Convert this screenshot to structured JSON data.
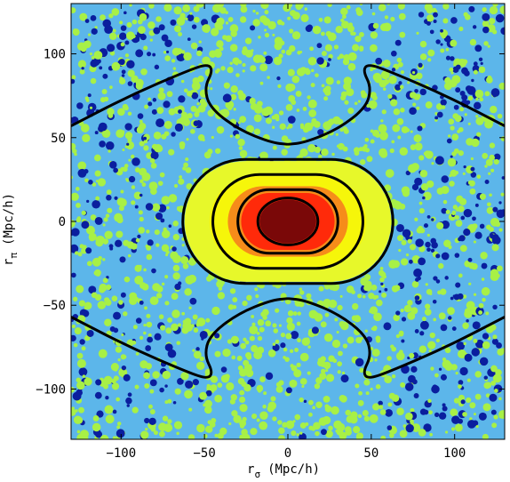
{
  "chart_data": {
    "type": "heatmap",
    "title": "",
    "xlabel": {
      "main": "r",
      "sub": "σ",
      "unit": "(Mpc/h)"
    },
    "ylabel": {
      "main": "r",
      "sub": "π",
      "unit": "(Mpc/h)"
    },
    "xlim": [
      -130,
      130
    ],
    "ylim": [
      -130,
      130
    ],
    "xticks": [
      -100,
      -50,
      0,
      50,
      100
    ],
    "yticks": [
      -100,
      -50,
      0,
      50,
      100
    ],
    "xtick_labels": [
      "−100",
      "−50",
      "0",
      "50",
      "100"
    ],
    "ytick_labels": [
      "−100",
      "−50",
      "0",
      "50",
      "100"
    ],
    "grid": false,
    "legend": "none",
    "colormap": [
      "#0a1e9e",
      "#5cb6ea",
      "#a8f046",
      "#f6f60a",
      "#f68c1a",
      "#ff2a0a",
      "#7a0808"
    ],
    "fill_levels": [
      {
        "name": "outer-flat",
        "shape": "capsule",
        "x_extent": 62,
        "y_extent": 36,
        "color": "#e7f82a"
      },
      {
        "name": "level-2",
        "shape": "capsule",
        "x_extent": 47,
        "y_extent": 27,
        "color": "#f6f60a"
      },
      {
        "name": "level-3",
        "shape": "capsule",
        "x_extent": 36,
        "y_extent": 21,
        "color": "#f68c1a"
      },
      {
        "name": "level-4",
        "shape": "capsule",
        "x_extent": 28,
        "y_extent": 17,
        "color": "#ff2a0a"
      },
      {
        "name": "core",
        "shape": "ellipse",
        "x_extent": 17,
        "y_extent": 13,
        "color": "#7a0808"
      }
    ],
    "contours": [
      {
        "name": "contour-core",
        "shape": "ellipse",
        "x_extent": 18,
        "y_extent": 14
      },
      {
        "name": "contour-2",
        "shape": "capsule",
        "x_extent": 30,
        "y_extent": 19
      },
      {
        "name": "contour-3",
        "shape": "capsule",
        "x_extent": 45,
        "y_extent": 28
      },
      {
        "name": "contour-4",
        "shape": "capsule",
        "x_extent": 63,
        "y_extent": 37
      },
      {
        "name": "contour-outer-top-left",
        "points": [
          [
            -130,
            57
          ],
          [
            -95,
            75
          ],
          [
            -60,
            90
          ],
          [
            -48,
            94
          ],
          [
            -45,
            90
          ],
          [
            -50,
            80
          ],
          [
            -47,
            68
          ],
          [
            -30,
            55
          ],
          [
            -10,
            47
          ],
          [
            0,
            46
          ]
        ]
      },
      {
        "name": "contour-outer-top-right",
        "points": [
          [
            0,
            46
          ],
          [
            10,
            47
          ],
          [
            30,
            55
          ],
          [
            47,
            68
          ],
          [
            50,
            80
          ],
          [
            45,
            90
          ],
          [
            48,
            94
          ],
          [
            60,
            90
          ],
          [
            95,
            75
          ],
          [
            130,
            57
          ]
        ]
      },
      {
        "name": "contour-outer-bottom-left",
        "points": [
          [
            -130,
            -57
          ],
          [
            -95,
            -75
          ],
          [
            -60,
            -90
          ],
          [
            -48,
            -94
          ],
          [
            -45,
            -90
          ],
          [
            -50,
            -80
          ],
          [
            -47,
            -68
          ],
          [
            -30,
            -55
          ],
          [
            -10,
            -47
          ],
          [
            0,
            -46
          ]
        ]
      },
      {
        "name": "contour-outer-bottom-right",
        "points": [
          [
            0,
            -46
          ],
          [
            10,
            -47
          ],
          [
            30,
            -55
          ],
          [
            47,
            -68
          ],
          [
            50,
            -80
          ],
          [
            45,
            -90
          ],
          [
            48,
            -94
          ],
          [
            60,
            -90
          ],
          [
            95,
            -75
          ],
          [
            130,
            -57
          ]
        ]
      }
    ]
  }
}
